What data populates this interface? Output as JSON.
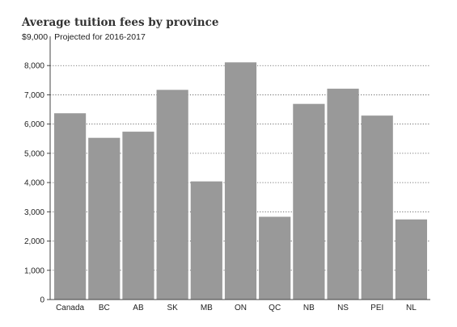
{
  "chart_data": {
    "type": "bar",
    "title": "Average tuition fees by province",
    "unit_label": "$9,000",
    "subtitle": "Projected for 2016-2017",
    "xlabel": "",
    "ylabel": "",
    "categories": [
      "Canada",
      "BC",
      "AB",
      "SK",
      "MB",
      "ON",
      "QC",
      "NB",
      "NS",
      "PEI",
      "NL"
    ],
    "values": [
      6370,
      5530,
      5740,
      7170,
      4040,
      8110,
      2830,
      6690,
      7210,
      6290,
      2740
    ],
    "ylim": [
      0,
      9000
    ],
    "yticks": [
      0,
      1000,
      2000,
      3000,
      4000,
      5000,
      6000,
      7000,
      8000
    ],
    "ytick_labels": [
      "0",
      "1,000",
      "2,000",
      "3,000",
      "4,000",
      "5,000",
      "6,000",
      "7,000",
      "8,000"
    ],
    "grid": true,
    "colors": {
      "bar": "#999999",
      "grid": "#555555",
      "axis": "#444444"
    }
  }
}
